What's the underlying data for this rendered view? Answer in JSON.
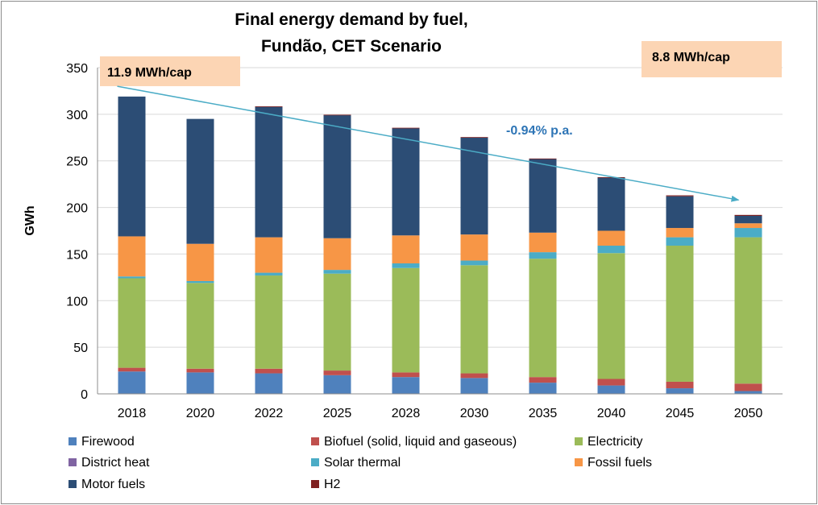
{
  "chart_data": {
    "type": "bar",
    "stacked": true,
    "title_lines": [
      "Final energy demand by fuel,",
      "Fundão,  CET Scenario"
    ],
    "xlabel": "",
    "ylabel": "GWh",
    "ylim": [
      0,
      350
    ],
    "yticks": [
      0,
      50,
      100,
      150,
      200,
      250,
      300,
      350
    ],
    "grid": true,
    "legend_position": "bottom",
    "categories": [
      "2018",
      "2020",
      "2022",
      "2025",
      "2028",
      "2030",
      "2035",
      "2040",
      "2045",
      "2050"
    ],
    "series": [
      {
        "name": "Firewood",
        "color": "#4f81bd",
        "values": [
          24,
          23,
          22,
          20,
          18,
          17,
          12,
          9,
          6,
          3
        ]
      },
      {
        "name": "Biofuel (solid, liquid and gaseous)",
        "color": "#c0504d",
        "values": [
          4,
          4,
          5,
          5,
          5,
          5,
          6,
          7,
          7,
          8
        ]
      },
      {
        "name": "Electricity",
        "color": "#9bbb59",
        "values": [
          96,
          92,
          100,
          104,
          112,
          116,
          127,
          135,
          146,
          157
        ]
      },
      {
        "name": "District heat",
        "color": "#8064a2",
        "values": [
          0,
          0,
          0,
          0,
          0,
          0,
          0,
          0,
          0,
          0
        ]
      },
      {
        "name": "Solar thermal",
        "color": "#4bacc6",
        "values": [
          2,
          2,
          3,
          4,
          5,
          5,
          7,
          8,
          9,
          10
        ]
      },
      {
        "name": "Fossil fuels",
        "color": "#f79646",
        "values": [
          43,
          40,
          38,
          34,
          30,
          28,
          21,
          16,
          10,
          5
        ]
      },
      {
        "name": "Motor fuels",
        "color": "#2c4d75",
        "values": [
          150,
          134,
          140,
          132,
          115,
          104,
          79,
          57,
          34,
          8
        ]
      },
      {
        "name": "H2",
        "color": "#7f2020",
        "values": [
          0,
          0,
          0.5,
          0.5,
          0.5,
          0.5,
          0.5,
          0.5,
          1,
          1
        ]
      }
    ],
    "annotations": {
      "start_per_capita": "11.9 MWh/cap",
      "end_per_capita": "8.8 MWh/cap",
      "trend_label": "-0.94% p.a."
    },
    "trend_arrow": {
      "from_value": 330,
      "to_value": 208,
      "color": "#4bacc6"
    }
  }
}
